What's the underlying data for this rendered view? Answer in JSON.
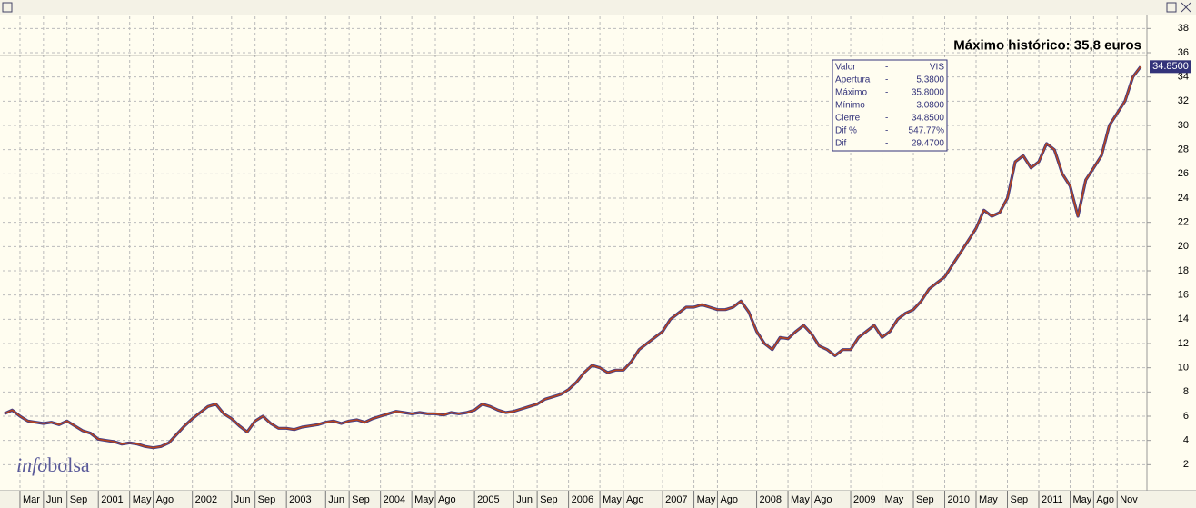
{
  "chart_data": {
    "type": "line",
    "annotation": "Máximo histórico: 35,8 euros",
    "reference_line": 35.8,
    "last_price": {
      "value": 34.85,
      "label": "34.8500"
    },
    "color": "#b5441f",
    "grid": true,
    "ylim": [
      0,
      39
    ],
    "yticks": [
      2,
      4,
      6,
      8,
      10,
      12,
      14,
      16,
      18,
      20,
      22,
      24,
      26,
      28,
      30,
      32,
      34,
      36,
      38
    ],
    "categories": [
      null,
      null,
      "Mar",
      null,
      null,
      "Jun",
      null,
      null,
      "Sep",
      null,
      null,
      null,
      "2001",
      null,
      null,
      null,
      "May",
      null,
      null,
      "Ago",
      null,
      null,
      null,
      null,
      "2002",
      null,
      null,
      null,
      null,
      "Jun",
      null,
      null,
      "Sep",
      null,
      null,
      null,
      "2003",
      null,
      null,
      null,
      null,
      "Jun",
      null,
      null,
      "Sep",
      null,
      null,
      null,
      "2004",
      null,
      null,
      null,
      "May",
      null,
      null,
      "Ago",
      null,
      null,
      null,
      null,
      "2005",
      null,
      null,
      null,
      null,
      "Jun",
      null,
      null,
      "Sep",
      null,
      null,
      null,
      "2006",
      null,
      null,
      null,
      "May",
      null,
      null,
      "Ago",
      null,
      null,
      null,
      null,
      "2007",
      null,
      null,
      null,
      "May",
      null,
      null,
      "Ago",
      null,
      null,
      null,
      null,
      "2008",
      null,
      null,
      null,
      "May",
      null,
      null,
      "Ago",
      null,
      null,
      null,
      null,
      "2009",
      null,
      null,
      null,
      "May",
      null,
      null,
      null,
      "Sep",
      null,
      null,
      null,
      "2010",
      null,
      null,
      null,
      "May",
      null,
      null,
      null,
      "Sep",
      null,
      null,
      null,
      "2011",
      null,
      null,
      null,
      "May",
      null,
      null,
      "Ago",
      null,
      null,
      "Nov",
      null,
      null,
      null
    ],
    "values": [
      6.2,
      6.5,
      6.0,
      5.6,
      5.5,
      5.4,
      5.5,
      5.3,
      5.6,
      5.2,
      4.8,
      4.6,
      4.1,
      4.0,
      3.9,
      3.7,
      3.8,
      3.7,
      3.5,
      3.4,
      3.5,
      3.8,
      4.5,
      5.2,
      5.8,
      6.3,
      6.8,
      7.0,
      6.2,
      5.8,
      5.2,
      4.7,
      5.6,
      6.0,
      5.4,
      5.0,
      5.0,
      4.9,
      5.1,
      5.2,
      5.3,
      5.5,
      5.6,
      5.4,
      5.6,
      5.7,
      5.5,
      5.8,
      6.0,
      6.2,
      6.4,
      6.3,
      6.2,
      6.3,
      6.2,
      6.2,
      6.1,
      6.3,
      6.2,
      6.3,
      6.5,
      7.0,
      6.8,
      6.5,
      6.3,
      6.4,
      6.6,
      6.8,
      7.0,
      7.4,
      7.6,
      7.8,
      8.2,
      8.8,
      9.6,
      10.2,
      10.0,
      9.6,
      9.8,
      9.8,
      10.5,
      11.5,
      12.0,
      12.5,
      13.0,
      14.0,
      14.5,
      15.0,
      15.0,
      15.2,
      15.0,
      14.8,
      14.8,
      15.0,
      15.5,
      14.6,
      13.0,
      12.0,
      11.5,
      12.5,
      12.4,
      13.0,
      13.5,
      12.8,
      11.8,
      11.5,
      11.0,
      11.5,
      11.5,
      12.5,
      13.0,
      13.5,
      12.5,
      13.0,
      14.0,
      14.5,
      14.8,
      15.5,
      16.5,
      17.0,
      17.5,
      18.5,
      19.5,
      20.5,
      21.5,
      23.0,
      22.5,
      22.8,
      24.0,
      27.0,
      27.5,
      26.5,
      27.0,
      28.5,
      28.0,
      26.0,
      25.0,
      22.5,
      25.5,
      26.5,
      27.5,
      30.0,
      31.0,
      32.0,
      34.0,
      34.85
    ],
    "info_box": {
      "rows": [
        [
          "Valor",
          "-",
          "VIS"
        ],
        [
          "Apertura",
          "-",
          "5.3800"
        ],
        [
          "Máximo",
          "-",
          "35.8000"
        ],
        [
          "Mínimo",
          "-",
          "3.0800"
        ],
        [
          "Cierre",
          "-",
          "34.8500"
        ],
        [
          "Dif %",
          "-",
          "547.77%"
        ],
        [
          "Dif",
          "-",
          "29.4700"
        ]
      ]
    },
    "watermark": [
      "info",
      "bolsa"
    ]
  }
}
